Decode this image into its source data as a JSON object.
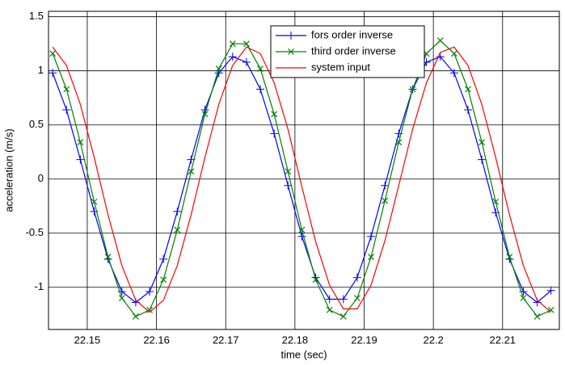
{
  "chart_data": {
    "type": "line",
    "xlabel": "time (sec)",
    "ylabel": "acceleration (m/s)",
    "x": [
      22.145,
      22.147,
      22.149,
      22.151,
      22.153,
      22.155,
      22.157,
      22.159,
      22.161,
      22.163,
      22.165,
      22.167,
      22.169,
      22.171,
      22.173,
      22.175,
      22.177,
      22.179,
      22.181,
      22.183,
      22.185,
      22.187,
      22.189,
      22.191,
      22.193,
      22.195,
      22.197,
      22.199,
      22.201,
      22.203,
      22.205,
      22.207,
      22.209,
      22.211,
      22.213,
      22.215,
      22.217
    ],
    "series": [
      {
        "name": "fors order inverse",
        "color": "#0000ff",
        "marker": "plus",
        "values": [
          0.98,
          0.64,
          0.18,
          -0.3,
          -0.74,
          -1.04,
          -1.14,
          -1.04,
          -0.74,
          -0.3,
          0.18,
          0.64,
          0.98,
          1.13,
          1.08,
          0.83,
          0.42,
          -0.06,
          -0.53,
          -0.91,
          -1.11,
          -1.11,
          -0.91,
          -0.53,
          -0.06,
          0.42,
          0.83,
          1.08,
          1.13,
          0.98,
          0.64,
          0.18,
          -0.31,
          -0.74,
          -1.04,
          -1.14,
          -1.03
        ]
      },
      {
        "name": "third order inverse",
        "color": "#008000",
        "marker": "x",
        "values": [
          1.16,
          0.83,
          0.34,
          -0.21,
          -0.72,
          -1.1,
          -1.27,
          -1.21,
          -0.93,
          -0.47,
          0.07,
          0.6,
          1.02,
          1.25,
          1.25,
          1.02,
          0.6,
          0.07,
          -0.47,
          -0.93,
          -1.21,
          -1.27,
          -1.1,
          -0.72,
          -0.2,
          0.34,
          0.83,
          1.16,
          1.28,
          1.16,
          0.83,
          0.34,
          -0.21,
          -0.72,
          -1.1,
          -1.27,
          -1.21
        ]
      },
      {
        "name": "system input",
        "color": "#ff0000",
        "marker": "none",
        "values": [
          1.22,
          1.05,
          0.69,
          0.2,
          -0.33,
          -0.8,
          -1.12,
          -1.23,
          -1.12,
          -0.8,
          -0.33,
          0.2,
          0.69,
          1.05,
          1.22,
          1.16,
          0.89,
          0.46,
          -0.07,
          -0.58,
          -0.98,
          -1.2,
          -1.2,
          -0.98,
          -0.57,
          -0.06,
          0.46,
          0.89,
          1.17,
          1.22,
          1.05,
          0.69,
          0.2,
          -0.33,
          -0.8,
          -1.12,
          -1.23
        ]
      }
    ],
    "xlim": [
      22.1444,
      22.2182
    ],
    "xticks": [
      22.15,
      22.16,
      22.17,
      22.18,
      22.19,
      22.2,
      22.21
    ],
    "ylim": [
      -1.39,
      1.55
    ],
    "yticks": [
      -1,
      -0.5,
      0,
      0.5,
      1,
      1.5
    ],
    "grid": true,
    "legend": "top"
  }
}
